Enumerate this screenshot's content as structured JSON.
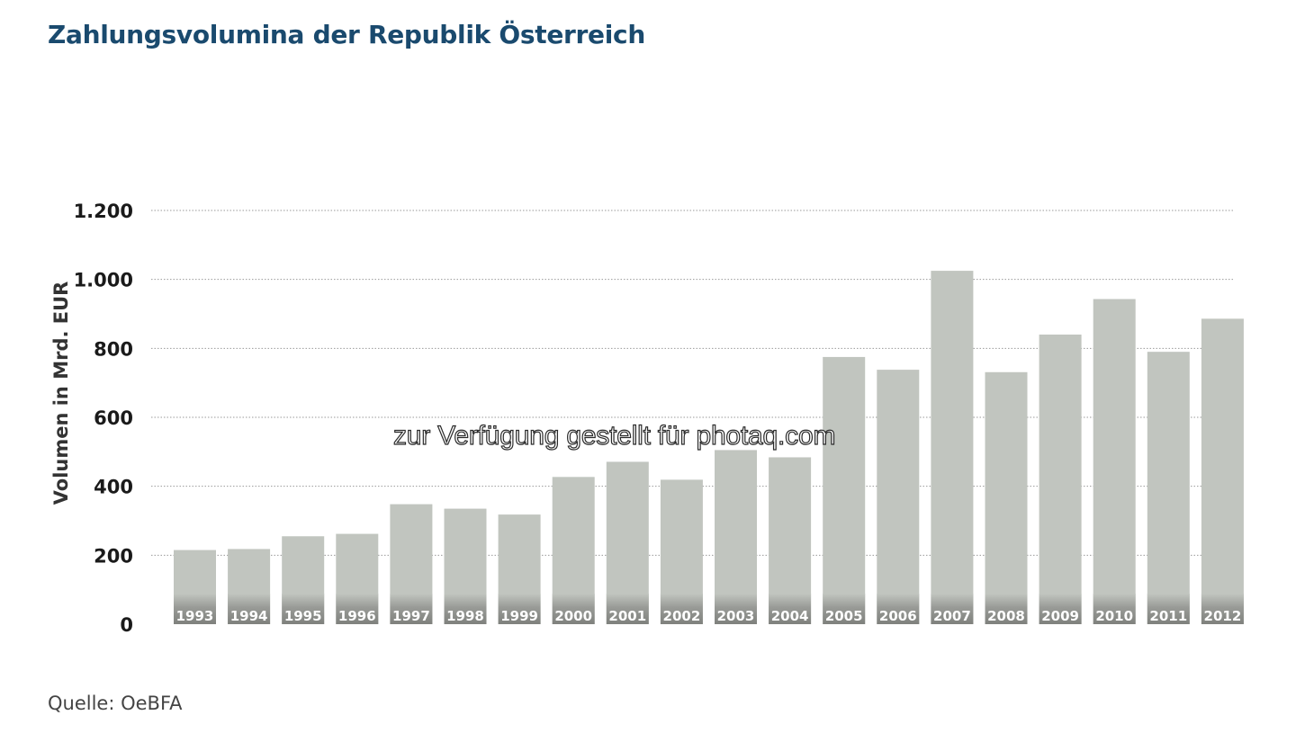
{
  "title": "Zahlungsvolumina der Republik Österreich",
  "source": "Quelle: OeBFA",
  "watermark": "zur Verfügung gestellt für photaq.com",
  "colors": {
    "title": "#1a4a6e",
    "bar": "#c1c5bf",
    "bar_label_band": "#8a8c88",
    "grid": "#9a9a9a"
  },
  "chart_data": {
    "type": "bar",
    "title": "Zahlungsvolumina der Republik Österreich",
    "xlabel": "",
    "ylabel": "Volumen in Mrd. EUR",
    "ylim": [
      0,
      1200
    ],
    "yticks": [
      0,
      200,
      400,
      600,
      800,
      1000,
      1200
    ],
    "ytick_labels": [
      "0",
      "200",
      "400",
      "600",
      "800",
      "1.000",
      "1.200"
    ],
    "grid": true,
    "categories": [
      "1993",
      "1994",
      "1995",
      "1996",
      "1997",
      "1998",
      "1999",
      "2000",
      "2001",
      "2002",
      "2003",
      "2004",
      "2005",
      "2006",
      "2007",
      "2008",
      "2009",
      "2010",
      "2011",
      "2012"
    ],
    "values": [
      215,
      218,
      255,
      262,
      348,
      335,
      318,
      427,
      471,
      419,
      505,
      484,
      775,
      738,
      1025,
      731,
      840,
      943,
      790,
      886
    ]
  }
}
